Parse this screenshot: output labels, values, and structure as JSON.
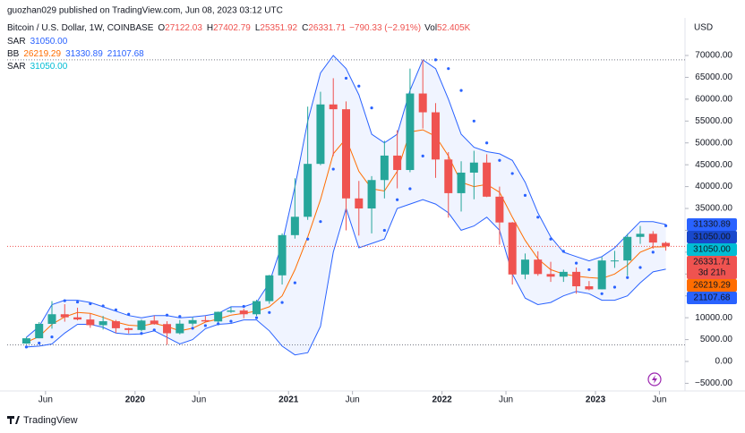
{
  "publisher": "guozhan029 published on TradingView.com, Jun 08, 2023 03:12 UTC",
  "footer": "TradingView",
  "chart_data": {
    "type": "candlestick",
    "title": "Bitcoin / U.S. Dollar, 1W, COINBASE",
    "ohlc_labels": [
      "O",
      "H",
      "L",
      "C"
    ],
    "change_label": "−790.33 (−2.91%)",
    "volume_name": "Vol",
    "volume_label": "52.405K",
    "countdown": "3d 21h",
    "axis_unit": "USD",
    "up_color": "#26a69a",
    "down_color": "#ef5350",
    "x": [
      "2019-04",
      "2019-05",
      "2019-06",
      "2019-07",
      "2019-08",
      "2019-09",
      "2019-10",
      "2019-11",
      "2019-12",
      "2020-01",
      "2020-02",
      "2020-03",
      "2020-04",
      "2020-05",
      "2020-06",
      "2020-07",
      "2020-08",
      "2020-09",
      "2020-10",
      "2020-11",
      "2020-12",
      "2021-01",
      "2021-02",
      "2021-03",
      "2021-04",
      "2021-05",
      "2021-06",
      "2021-07",
      "2021-08",
      "2021-09",
      "2021-10",
      "2021-11",
      "2021-12",
      "2022-01",
      "2022-02",
      "2022-03",
      "2022-04",
      "2022-05",
      "2022-06",
      "2022-07",
      "2022-08",
      "2022-09",
      "2022-10",
      "2022-11",
      "2022-12",
      "2023-01",
      "2023-02",
      "2023-03",
      "2023-04",
      "2023-05",
      "2023-06"
    ],
    "ohlc": [
      [
        4100,
        5600,
        4000,
        5300
      ],
      [
        5300,
        9000,
        5300,
        8600
      ],
      [
        8600,
        13800,
        7500,
        10800
      ],
      [
        10800,
        13100,
        9100,
        10100
      ],
      [
        10100,
        12300,
        9400,
        9600
      ],
      [
        9600,
        10900,
        7700,
        8300
      ],
      [
        8300,
        10400,
        7300,
        9200
      ],
      [
        9200,
        9500,
        6500,
        7600
      ],
      [
        7600,
        7700,
        6400,
        7200
      ],
      [
        7200,
        9600,
        6900,
        9350
      ],
      [
        9350,
        10500,
        8400,
        8550
      ],
      [
        8550,
        9200,
        3800,
        6450
      ],
      [
        6450,
        9500,
        6200,
        8650
      ],
      [
        8650,
        10100,
        8100,
        9450
      ],
      [
        9450,
        10400,
        8900,
        9150
      ],
      [
        9150,
        11400,
        8900,
        11350
      ],
      [
        11350,
        12500,
        11100,
        11650
      ],
      [
        11650,
        12100,
        9900,
        10800
      ],
      [
        10800,
        14100,
        10400,
        13800
      ],
      [
        13800,
        19800,
        13200,
        19700
      ],
      [
        19700,
        29300,
        17600,
        28900
      ],
      [
        28900,
        41900,
        28100,
        33100
      ],
      [
        33100,
        58300,
        32400,
        45200
      ],
      [
        45200,
        61700,
        44900,
        58800
      ],
      [
        58800,
        64800,
        47000,
        57700
      ],
      [
        57700,
        59500,
        30000,
        37300
      ],
      [
        37300,
        41300,
        28800,
        35000
      ],
      [
        35000,
        42400,
        29300,
        41500
      ],
      [
        41500,
        50500,
        37300,
        47100
      ],
      [
        47100,
        52900,
        39600,
        43800
      ],
      [
        43800,
        67000,
        43300,
        61300
      ],
      [
        61300,
        69000,
        53300,
        57000
      ],
      [
        57000,
        59100,
        42000,
        46200
      ],
      [
        46200,
        47900,
        32900,
        38500
      ],
      [
        38500,
        45800,
        34300,
        43200
      ],
      [
        43200,
        48200,
        37100,
        45500
      ],
      [
        45500,
        47400,
        37600,
        37700
      ],
      [
        37700,
        40000,
        26700,
        31800
      ],
      [
        31800,
        31900,
        17600,
        19900
      ],
      [
        19900,
        24700,
        18800,
        23300
      ],
      [
        23300,
        25200,
        19600,
        20000
      ],
      [
        20000,
        22800,
        18200,
        19400
      ],
      [
        19400,
        21000,
        18200,
        20500
      ],
      [
        20500,
        21500,
        15500,
        17200
      ],
      [
        17200,
        18400,
        16300,
        16500
      ],
      [
        16500,
        23900,
        16500,
        23100
      ],
      [
        23100,
        25300,
        21400,
        23100
      ],
      [
        23100,
        29200,
        19600,
        28500
      ],
      [
        28500,
        31000,
        26900,
        29200
      ],
      [
        29200,
        29800,
        25800,
        27200
      ],
      [
        27122.03,
        27402.79,
        25351.92,
        26331.71
      ]
    ],
    "bb": {
      "name": "BB",
      "basis_color": "#ff6d00",
      "band_color": "#2962ff",
      "middle": [
        4400,
        5700,
        8500,
        10200,
        11200,
        11000,
        10100,
        9000,
        8300,
        8100,
        8700,
        8000,
        7000,
        7600,
        9000,
        9700,
        10600,
        11000,
        11500,
        12500,
        15000,
        21000,
        28500,
        37000,
        47500,
        51000,
        43500,
        39500,
        39000,
        43500,
        52500,
        53000,
        51500,
        47000,
        41000,
        40000,
        40500,
        38700,
        33000,
        27700,
        23500,
        21000,
        20000,
        19500,
        19200,
        19000,
        20000,
        22000,
        25000,
        26200,
        26219.29
      ],
      "upper": [
        5500,
        8000,
        13000,
        14000,
        14000,
        13500,
        12500,
        11500,
        10500,
        10000,
        10500,
        10500,
        10000,
        10200,
        10500,
        11000,
        12500,
        12500,
        13500,
        18000,
        27000,
        40000,
        55000,
        66000,
        70000,
        67000,
        61000,
        52000,
        50000,
        52000,
        62000,
        69000,
        67000,
        60000,
        52000,
        49000,
        48000,
        47500,
        46000,
        41000,
        34000,
        28500,
        25000,
        24000,
        23000,
        24000,
        26000,
        29000,
        32000,
        32000,
        31330.89
      ],
      "lower": [
        3300,
        3500,
        4000,
        6500,
        8500,
        8500,
        7800,
        6500,
        6200,
        6300,
        7000,
        5500,
        4000,
        5000,
        7500,
        8500,
        8700,
        9500,
        9500,
        7000,
        3500,
        1500,
        2000,
        8000,
        25000,
        35000,
        26000,
        27000,
        28000,
        35000,
        36000,
        37000,
        36000,
        34000,
        30000,
        31000,
        33000,
        30000,
        20000,
        14500,
        13000,
        13500,
        15000,
        16000,
        15500,
        14000,
        14000,
        15000,
        18000,
        20500,
        21107.68
      ]
    },
    "sar": {
      "name": "SAR",
      "label": "31050.00",
      "color": "#2962ff",
      "values": [
        3300,
        4200,
        5600,
        13900,
        13600,
        13200,
        12700,
        11800,
        10800,
        6400,
        7200,
        10600,
        10300,
        7600,
        8200,
        8600,
        9200,
        12600,
        10000,
        11200,
        13500,
        18000,
        28000,
        32000,
        44000,
        64800,
        63000,
        58000,
        30000,
        37000,
        39500,
        47000,
        69000,
        67000,
        62000,
        55000,
        50000,
        46000,
        43000,
        38000,
        33000,
        28000,
        25200,
        22500,
        21000,
        15500,
        17000,
        19200,
        21500,
        25000,
        31050
      ]
    },
    "sar2": {
      "name": "SAR",
      "label": "31050.00",
      "color": "#00bcd4"
    },
    "xlim": [
      "2019-03",
      "2023-08"
    ],
    "xticks": [
      {
        "value": "2019-06",
        "label": "Jun"
      },
      {
        "value": "2020-01",
        "label": "2020"
      },
      {
        "value": "2020-06",
        "label": "Jun"
      },
      {
        "value": "2021-01",
        "label": "2021"
      },
      {
        "value": "2021-06",
        "label": "Jun"
      },
      {
        "value": "2022-01",
        "label": "2022"
      },
      {
        "value": "2022-06",
        "label": "Jun"
      },
      {
        "value": "2023-01",
        "label": "2023"
      },
      {
        "value": "2023-06",
        "label": "Jun"
      }
    ],
    "ylim": [
      -6750,
      78600
    ],
    "yticks": [
      {
        "value": -5000,
        "label": "−5000.00"
      },
      {
        "value": 0,
        "label": "0.00"
      },
      {
        "value": 5000,
        "label": "5000.00"
      },
      {
        "value": 10000,
        "label": "10000.00"
      },
      {
        "value": 15000,
        "label": "15000.00"
      },
      {
        "value": 20000,
        "label": "20000.00"
      },
      {
        "value": 25000,
        "label": "25000.00"
      },
      {
        "value": 30000,
        "label": "30000.00"
      },
      {
        "value": 35000,
        "label": "35000.00"
      },
      {
        "value": 40000,
        "label": "40000.00"
      },
      {
        "value": 45000,
        "label": "45000.00"
      },
      {
        "value": 50000,
        "label": "50000.00"
      },
      {
        "value": 55000,
        "label": "55000.00"
      },
      {
        "value": 60000,
        "label": "60000.00"
      },
      {
        "value": 65000,
        "label": "65000.00"
      },
      {
        "value": 70000,
        "label": "70000.00"
      }
    ]
  }
}
